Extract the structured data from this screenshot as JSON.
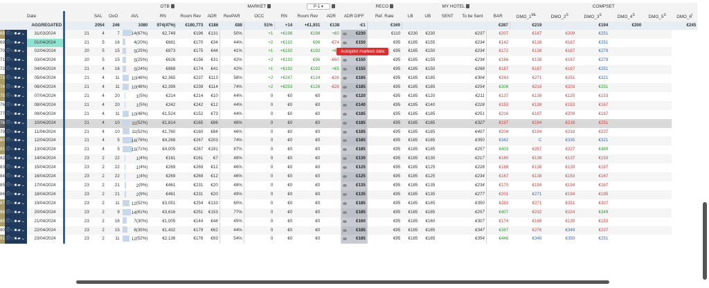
{
  "header": {
    "date_label": "Date",
    "groups": {
      "otb": "OTB",
      "market": "MARKET",
      "pickup": "P-1",
      "reco": "RECO",
      "my_hotel": "MY HOTEL",
      "compset": "COMPSET"
    },
    "cols": {
      "sal": "SAL",
      "oso": "OoO",
      "avl": "AVL",
      "rn": "RN",
      "room_rev": "Room Rev",
      "adr": "ADR",
      "revpar": "RevPAR",
      "occ": "OCC",
      "p_rn": "RN",
      "p_rev": "Room Rev",
      "p_adr": "ADR",
      "p_adr_diff": "ADR DIFF",
      "ref_rate": "Ref. Rate",
      "lb": "LB",
      "ub": "UB",
      "sent": "SENT",
      "to_be_sent": "To be Sent",
      "bar": "BAR",
      "dmo1": "DMO_1",
      "dmo2": "DMO_2",
      "dmo3": "DMO_3",
      "dmo4": "DMO_4",
      "dmo5": "DMO_5",
      "dmo6": "DMO_6"
    },
    "sups": {
      "dmo1": "ML",
      "dmo2": "S",
      "dmo3": "S",
      "dmo4": "S",
      "dmo5": "S",
      "dmo6": "I"
    }
  },
  "aggregated": {
    "label": "AGGREGATED",
    "sal": "2054",
    "oso": "246",
    "avl": "1080",
    "rn": "974(47%)",
    "room_rev": "€180,773",
    "adr": "€186",
    "revpar": "€88",
    "occ": "51%",
    "p_rn": "+14",
    "p_rev": "+€1,931",
    "p_adr": "€138",
    "p_adr_diff": "-€1",
    "ref_rate": "€169",
    "bar": "€287",
    "dmo1": "€219",
    "dmo3": "€194",
    "dmo4": "€200",
    "dmo6": "€245"
  },
  "tooltip": "Autopilot marked data",
  "rows": [
    {
      "n": "68",
      "nc": "b",
      "date": "31/03/2024",
      "sal": "21",
      "oso": "4",
      "avl": "7",
      "rn": "14",
      "rnp": "(67%)",
      "rnf": 67,
      "rev": "€2,749",
      "adr": "€196",
      "revpar": "€131",
      "occ": "50%",
      "prn": "+1",
      "prev": "+€198",
      "padr": "€198",
      "pdiff": "+€0",
      "pc": "pos",
      "ref": "€230",
      "lb": "€110",
      "ub": "€230",
      "sent": "€230",
      "bar": "€237",
      "d1": "€207",
      "d1c": "neg",
      "d2": "€187",
      "d2c": "neg",
      "d3": "€209",
      "d3c": "neg",
      "d4": "€251",
      "d4c": "blu"
    },
    {
      "n": "69",
      "nc": "n",
      "date": "01/04/2024",
      "sel": true,
      "sal": "21",
      "oso": "5",
      "avl": "16",
      "rn": "4",
      "rnp": "(20%)",
      "rnf": 20,
      "rev": "€681",
      "adr": "€170",
      "revpar": "€34",
      "occ": "44%",
      "prn": "+2",
      "prev": "+€192",
      "padr": "€96",
      "pdiff": "-€74",
      "pc": "neg",
      "ref": "€150",
      "lb": "€95",
      "ub": "€185",
      "sent": "€155",
      "bar": "€234",
      "d1": "€142",
      "d1c": "neg",
      "d2": "€138",
      "d2c": "neg",
      "d3": "€167",
      "d3c": "neg",
      "d4": "€251",
      "d4c": "blu"
    },
    {
      "n": "70",
      "nc": "n",
      "date": "02/04/2024",
      "sal": "20",
      "oso": "5",
      "avl": "15",
      "rn": "5",
      "rnp": "(25%)",
      "rnf": 25,
      "rev": "€873",
      "adr": "€175",
      "revpar": "€44",
      "occ": "41%",
      "prn": "+1",
      "prev": "+€192",
      "padr": "€192",
      "pdiff": "+€4",
      "pc": "pos",
      "ref": "€155",
      "lb": "€95",
      "ub": "€185",
      "sent": "€150",
      "bar": "€234",
      "d1": "€172",
      "d1c": "neg",
      "d2": "€138",
      "d2c": "neg",
      "d3": "€167",
      "d3c": "neg",
      "d4": "€279",
      "d4c": "blu"
    },
    {
      "n": "71",
      "nc": "n",
      "date": "03/04/2024",
      "sal": "20",
      "oso": "5",
      "avl": "15",
      "rn": "5",
      "rnp": "(25%)",
      "rnf": 25,
      "rev": "€626",
      "adr": "€156",
      "revpar": "€31",
      "occ": "42%",
      "prn": "+2",
      "prev": "+€192",
      "padr": "€96",
      "pdiff": "-€60",
      "pc": "neg",
      "ref": "€150",
      "lb": "€95",
      "ub": "€185",
      "sent": "€155",
      "bar": "€234",
      "d1": "€166",
      "d1c": "neg",
      "d2": "€138",
      "d2c": "neg",
      "d3": "€167",
      "d3c": "neg",
      "d4": "€279",
      "d4c": "blu"
    },
    {
      "n": "72",
      "nc": "n",
      "date": "04/04/2024",
      "sal": "21",
      "oso": "4",
      "avl": "16",
      "rn": "5",
      "rnp": "(24%)",
      "rnf": 24,
      "rev": "€868",
      "adr": "€174",
      "revpar": "€41",
      "occ": "42%",
      "prn": "+1",
      "prev": "+€192",
      "padr": "€192",
      "pdiff": "+€5",
      "pc": "pos",
      "ref": "€155",
      "lb": "€95",
      "ub": "€185",
      "sent": "€150",
      "bar": "€268",
      "d1": "€187",
      "d1c": "neg",
      "d2": "€187",
      "d2c": "neg",
      "d3": "€167",
      "d3c": "neg",
      "d4": "€251",
      "d4c": "blu"
    },
    {
      "n": "73",
      "nc": "b",
      "date": "05/04/2024",
      "sal": "21",
      "oso": "4",
      "avl": "11",
      "rn": "10",
      "rnp": "(48%)",
      "rnf": 48,
      "rev": "€2,365",
      "adr": "€237",
      "revpar": "€113",
      "occ": "58%",
      "prn": "+2",
      "prev": "+€247",
      "padr": "€124",
      "pdiff": "-€28",
      "pc": "neg",
      "ref": "€185",
      "lb": "€95",
      "ub": "€185",
      "sent": "€185",
      "bar": "€304",
      "d1": "€243",
      "d1c": "neg",
      "d2": "€271",
      "d2c": "neg",
      "d3": "€251",
      "d3c": "neg",
      "d4": "€321",
      "d4c": "blu"
    },
    {
      "n": "74",
      "nc": "b",
      "date": "06/04/2024",
      "sal": "21",
      "oso": "4",
      "avl": "11",
      "rn": "10",
      "rnp": "(48%)",
      "rnf": 48,
      "rev": "€2,399",
      "adr": "€239",
      "revpar": "€114",
      "occ": "74%",
      "prn": "+2",
      "prev": "+€253",
      "padr": "€126",
      "pdiff": "-€28",
      "pc": "neg",
      "ref": "€185",
      "lb": "€95",
      "ub": "€185",
      "sent": "€185",
      "bar": "€254",
      "d1": "€306",
      "d1c": "grn",
      "d2": "€218",
      "d2c": "neg",
      "d3": "€203",
      "d3c": "neg",
      "d4": "€251",
      "d4c": "grn"
    },
    {
      "n": "75",
      "nc": "b",
      "date": "07/04/2024",
      "sal": "21",
      "oso": "4",
      "avl": "20",
      "rn": "1",
      "rnp": "(5%)",
      "rnf": 5,
      "rev": "€214",
      "adr": "€214",
      "revpar": "€10",
      "occ": "44%",
      "prn": "0",
      "prev": "€0",
      "padr": "€0",
      "pdiff": "",
      "pc": "",
      "ref": "€120",
      "lb": "€95",
      "ub": "€185",
      "sent": "€120",
      "bar": "€211",
      "d1": "€137",
      "d1c": "neg",
      "d2": "€138",
      "d2c": "neg",
      "d3": "€125",
      "d3c": "neg",
      "d4": "€153",
      "d4c": "neg"
    },
    {
      "n": "76",
      "nc": "n",
      "date": "08/04/2024",
      "sal": "21",
      "oso": "4",
      "avl": "20",
      "rn": "1",
      "rnp": "(5%)",
      "rnf": 5,
      "rev": "€242",
      "adr": "€242",
      "revpar": "€12",
      "occ": "44%",
      "prn": "0",
      "prev": "€0",
      "padr": "€0",
      "pdiff": "",
      "pc": "",
      "ref": "€140",
      "lb": "€95",
      "ub": "€185",
      "sent": "€140",
      "bar": "€228",
      "d1": "€153",
      "d1c": "neg",
      "d2": "€138",
      "d2c": "neg",
      "d3": "€153",
      "d3c": "neg",
      "d4": "€167",
      "d4c": "neg"
    },
    {
      "n": "77",
      "nc": "n",
      "date": "09/04/2024",
      "sal": "21",
      "oso": "4",
      "avl": "11",
      "rn": "10",
      "rnp": "(48%)",
      "rnf": 48,
      "rev": "€1,524",
      "adr": "€152",
      "revpar": "€73",
      "occ": "44%",
      "prn": "0",
      "prev": "€0",
      "padr": "€0",
      "pdiff": "",
      "pc": "",
      "ref": "€185",
      "lb": "€95",
      "ub": "€185",
      "sent": "€185",
      "bar": "€251",
      "d1": "€216",
      "d1c": "neg",
      "d2": "€187",
      "d2c": "neg",
      "d3": "€209",
      "d3c": "neg",
      "d4": "€167",
      "d4c": "neg"
    },
    {
      "n": "78",
      "nc": "g",
      "date": "10/04/2024",
      "hl": true,
      "sal": "21",
      "oso": "4",
      "avl": "10",
      "rn": "11",
      "rnp": "(52%)",
      "rnf": 52,
      "rev": "€1,814",
      "adr": "€165",
      "revpar": "€86",
      "occ": "48%",
      "prn": "0",
      "prev": "€0",
      "padr": "€0",
      "pdiff": "",
      "pc": "",
      "ref": "€185",
      "lb": "€95",
      "ub": "€185",
      "sent": "€185",
      "bar": "€327",
      "d1": "€197",
      "d1c": "neg",
      "d2": "€194",
      "d2c": "neg",
      "d3": "€218",
      "d3c": "neg",
      "d4": "€251",
      "d4c": "neg"
    },
    {
      "n": "79",
      "nc": "n",
      "date": "11/04/2024",
      "sal": "21",
      "oso": "4",
      "avl": "10",
      "rn": "11",
      "rnp": "(52%)",
      "rnf": 52,
      "rev": "€1,760",
      "adr": "€160",
      "revpar": "€84",
      "occ": "46%",
      "prn": "0",
      "prev": "€0",
      "padr": "€0",
      "pdiff": "",
      "pc": "",
      "ref": "€185",
      "lb": "€95",
      "ub": "€185",
      "sent": "€185",
      "bar": "€407",
      "d1": "€204",
      "d1c": "neg",
      "d2": "€194",
      "d2c": "neg",
      "d3": "€218",
      "d3c": "neg",
      "d4": "€237",
      "d4c": "neg"
    },
    {
      "n": "80",
      "nc": "b",
      "date": "12/04/2024",
      "sal": "21",
      "oso": "4",
      "avl": "5",
      "rn": "16",
      "rnp": "(76%)",
      "rnf": 76,
      "rev": "€4,268",
      "adr": "€267",
      "revpar": "€203",
      "occ": "74%",
      "prn": "0",
      "prev": "€0",
      "padr": "€0",
      "pdiff": "",
      "pc": "",
      "ref": "€185",
      "lb": "€95",
      "ub": "€185",
      "sent": "€185",
      "bar": "€350",
      "d1": "€342",
      "d1c": "blu",
      "d2": "C",
      "d2c": "blu",
      "d3": "€335",
      "d3c": "blu",
      "d4": "€321",
      "d4c": "blu"
    },
    {
      "n": "81",
      "nc": "b",
      "date": "13/04/2024",
      "sal": "21",
      "oso": "4",
      "avl": "5",
      "rn": "15",
      "rnp": "(71%)",
      "rnf": 71,
      "rev": "€4,005",
      "adr": "€267",
      "revpar": "€191",
      "occ": "87%",
      "prn": "0",
      "prev": "€0",
      "padr": "€0",
      "pdiff": "",
      "pc": "",
      "ref": "€185",
      "lb": "€95",
      "ub": "€185",
      "sent": "€185",
      "bar": "€257",
      "d1": "€403",
      "d1c": "grn",
      "d2": "€257",
      "d2c": "neg",
      "d3": "€237",
      "d3c": "neg",
      "d4": "€489",
      "d4c": "grn"
    },
    {
      "n": "82",
      "nc": "n",
      "date": "14/04/2024",
      "sal": "23",
      "oso": "2",
      "avl": "22",
      "rn": "1",
      "rnp": "(4%)",
      "rnf": 4,
      "rev": "€161",
      "adr": "€161",
      "revpar": "€7",
      "occ": "48%",
      "prn": "0",
      "prev": "€0",
      "padr": "€0",
      "pdiff": "",
      "pc": "",
      "ref": "€130",
      "lb": "€95",
      "ub": "€185",
      "sent": "€130",
      "bar": "€217",
      "d1": "€160",
      "d1c": "neg",
      "d2": "€138",
      "d2c": "neg",
      "d3": "€137",
      "d3c": "neg",
      "d4": "€153",
      "d4c": "neg"
    },
    {
      "n": "83",
      "nc": "n",
      "date": "15/04/2024",
      "sal": "23",
      "oso": "2",
      "avl": "22",
      "rn": "1",
      "rnp": "(4%)",
      "rnf": 4,
      "rev": "€269",
      "adr": "€269",
      "revpar": "€12",
      "occ": "46%",
      "prn": "0",
      "prev": "€0",
      "padr": "€0",
      "pdiff": "",
      "pc": "",
      "ref": "€125",
      "lb": "€95",
      "ub": "€185",
      "sent": "€125",
      "bar": "€228",
      "d1": "€168",
      "d1c": "neg",
      "d2": "€138",
      "d2c": "neg",
      "d3": "€139",
      "d3c": "neg",
      "d4": "€167",
      "d4c": "neg"
    },
    {
      "n": "84",
      "nc": "n",
      "date": "16/04/2024",
      "sal": "23",
      "oso": "2",
      "avl": "22",
      "rn": "1",
      "rnp": "(4%)",
      "rnf": 4,
      "rev": "€269",
      "adr": "€269",
      "revpar": "€12",
      "occ": "46%",
      "prn": "0",
      "prev": "€0",
      "padr": "€0",
      "pdiff": "",
      "pc": "",
      "ref": "€125",
      "lb": "€95",
      "ub": "€185",
      "sent": "€125",
      "bar": "€234",
      "d1": "€167",
      "d1c": "neg",
      "d2": "€138",
      "d2c": "neg",
      "d3": "€153",
      "d3c": "neg",
      "d4": "€167",
      "d4c": "neg"
    },
    {
      "n": "85",
      "nc": "n",
      "date": "17/04/2024",
      "sal": "23",
      "oso": "2",
      "avl": "21",
      "rn": "2",
      "rnp": "(9%)",
      "rnf": 9,
      "rev": "€461",
      "adr": "€231",
      "revpar": "€20",
      "occ": "48%",
      "prn": "0",
      "prev": "€0",
      "padr": "€0",
      "pdiff": "",
      "pc": "",
      "ref": "€135",
      "lb": "€95",
      "ub": "€185",
      "sent": "€135",
      "bar": "€234",
      "d1": "€170",
      "d1c": "neg",
      "d2": "€194",
      "d2c": "neg",
      "d3": "€194",
      "d3c": "neg",
      "d4": "€167",
      "d4c": "neg"
    },
    {
      "n": "86",
      "nc": "n",
      "date": "18/04/2024",
      "sal": "23",
      "oso": "2",
      "avl": "21",
      "rn": "2",
      "rnp": "(9%)",
      "rnf": 9,
      "rev": "€461",
      "adr": "€231",
      "revpar": "€20",
      "occ": "49%",
      "prn": "0",
      "prev": "€0",
      "padr": "€0",
      "pdiff": "",
      "pc": "",
      "ref": "€135",
      "lb": "€95",
      "ub": "€185",
      "sent": "€135",
      "bar": "€277",
      "d1": "€201",
      "d1c": "neg",
      "d2": "€271",
      "d2c": "blu",
      "d3": "€194",
      "d3c": "neg",
      "d4": "€195",
      "d4c": "neg"
    },
    {
      "n": "87",
      "nc": "b",
      "date": "19/04/2024",
      "sal": "23",
      "oso": "2",
      "avl": "11",
      "rn": "12",
      "rnp": "(52%)",
      "rnf": 52,
      "rev": "€3,051",
      "adr": "€254",
      "revpar": "€133",
      "occ": "60%",
      "prn": "0",
      "prev": "€0",
      "padr": "€0",
      "pdiff": "",
      "pc": "",
      "ref": "€185",
      "lb": "€95",
      "ub": "€185",
      "sent": "€185",
      "bar": "€350",
      "d1": "€283",
      "d1c": "neg",
      "d2": "€271",
      "d2c": "neg",
      "d3": "€251",
      "d3c": "neg",
      "d4": "€307",
      "d4c": "neg"
    },
    {
      "n": "88",
      "nc": "b",
      "date": "20/04/2024",
      "sal": "23",
      "oso": "2",
      "avl": "9",
      "rn": "14",
      "rnp": "(61%)",
      "rnf": 61,
      "rev": "€3,616",
      "adr": "€251",
      "revpar": "€153",
      "occ": "77%",
      "prn": "0",
      "prev": "€0",
      "padr": "€0",
      "pdiff": "",
      "pc": "",
      "ref": "€185",
      "lb": "€95",
      "ub": "€185",
      "sent": "€185",
      "bar": "€257",
      "d1": "€407",
      "d1c": "grn",
      "d2": "€232",
      "d2c": "neg",
      "d3": "€224",
      "d3c": "neg",
      "d4": "€349",
      "d4c": "grn"
    },
    {
      "n": "89",
      "nc": "b",
      "date": "21/04/2024",
      "sal": "23",
      "oso": "2",
      "avl": "16",
      "rn": "7",
      "rnp": "(30%)",
      "rnf": 30,
      "rev": "€1,005",
      "adr": "€144",
      "revpar": "€44",
      "occ": "45%",
      "prn": "0",
      "prev": "€0",
      "padr": "€0",
      "pdiff": "",
      "pc": "",
      "ref": "€160",
      "lb": "€95",
      "ub": "€185",
      "sent": "€160",
      "bar": "€307",
      "d1": "€174",
      "d1c": "neg",
      "d2": "€166",
      "d2c": "neg",
      "d3": "€139",
      "d3c": "neg",
      "d4": "€153",
      "d4c": "neg"
    },
    {
      "n": "90",
      "nc": "n",
      "date": "22/04/2024",
      "sal": "23",
      "oso": "2",
      "avl": "15",
      "rn": "8",
      "rnp": "(35%)",
      "rnf": 35,
      "rev": "€1,432",
      "adr": "€179",
      "revpar": "€62",
      "occ": "44%",
      "prn": "0",
      "prev": "€0",
      "padr": "€0",
      "pdiff": "",
      "pc": "",
      "ref": "€185",
      "lb": "€95",
      "ub": "€185",
      "sent": "€185",
      "bar": "€347",
      "d1": "€387",
      "d1c": "grn",
      "d2": "€276",
      "d2c": "neg",
      "d3": "€349",
      "d3c": "blu",
      "d4": "€237",
      "d4c": "neg"
    },
    {
      "n": "91",
      "nc": "b",
      "date": "23/04/2024",
      "sal": "23",
      "oso": "2",
      "avl": "11",
      "rn": "12",
      "rnp": "(52%)",
      "rnf": 52,
      "rev": "€2,136",
      "adr": "€178",
      "revpar": "€93",
      "occ": "54%",
      "prn": "0",
      "prev": "€0",
      "padr": "€0",
      "pdiff": "",
      "pc": "",
      "ref": "€185",
      "lb": "€95",
      "ub": "€185",
      "sent": "€185",
      "bar": "€354",
      "d1": "€446",
      "d1c": "grn",
      "d2": "€348",
      "d2c": "blu",
      "d3": "€350",
      "d3c": "blu",
      "d4": "€251",
      "d4c": "blu"
    }
  ]
}
